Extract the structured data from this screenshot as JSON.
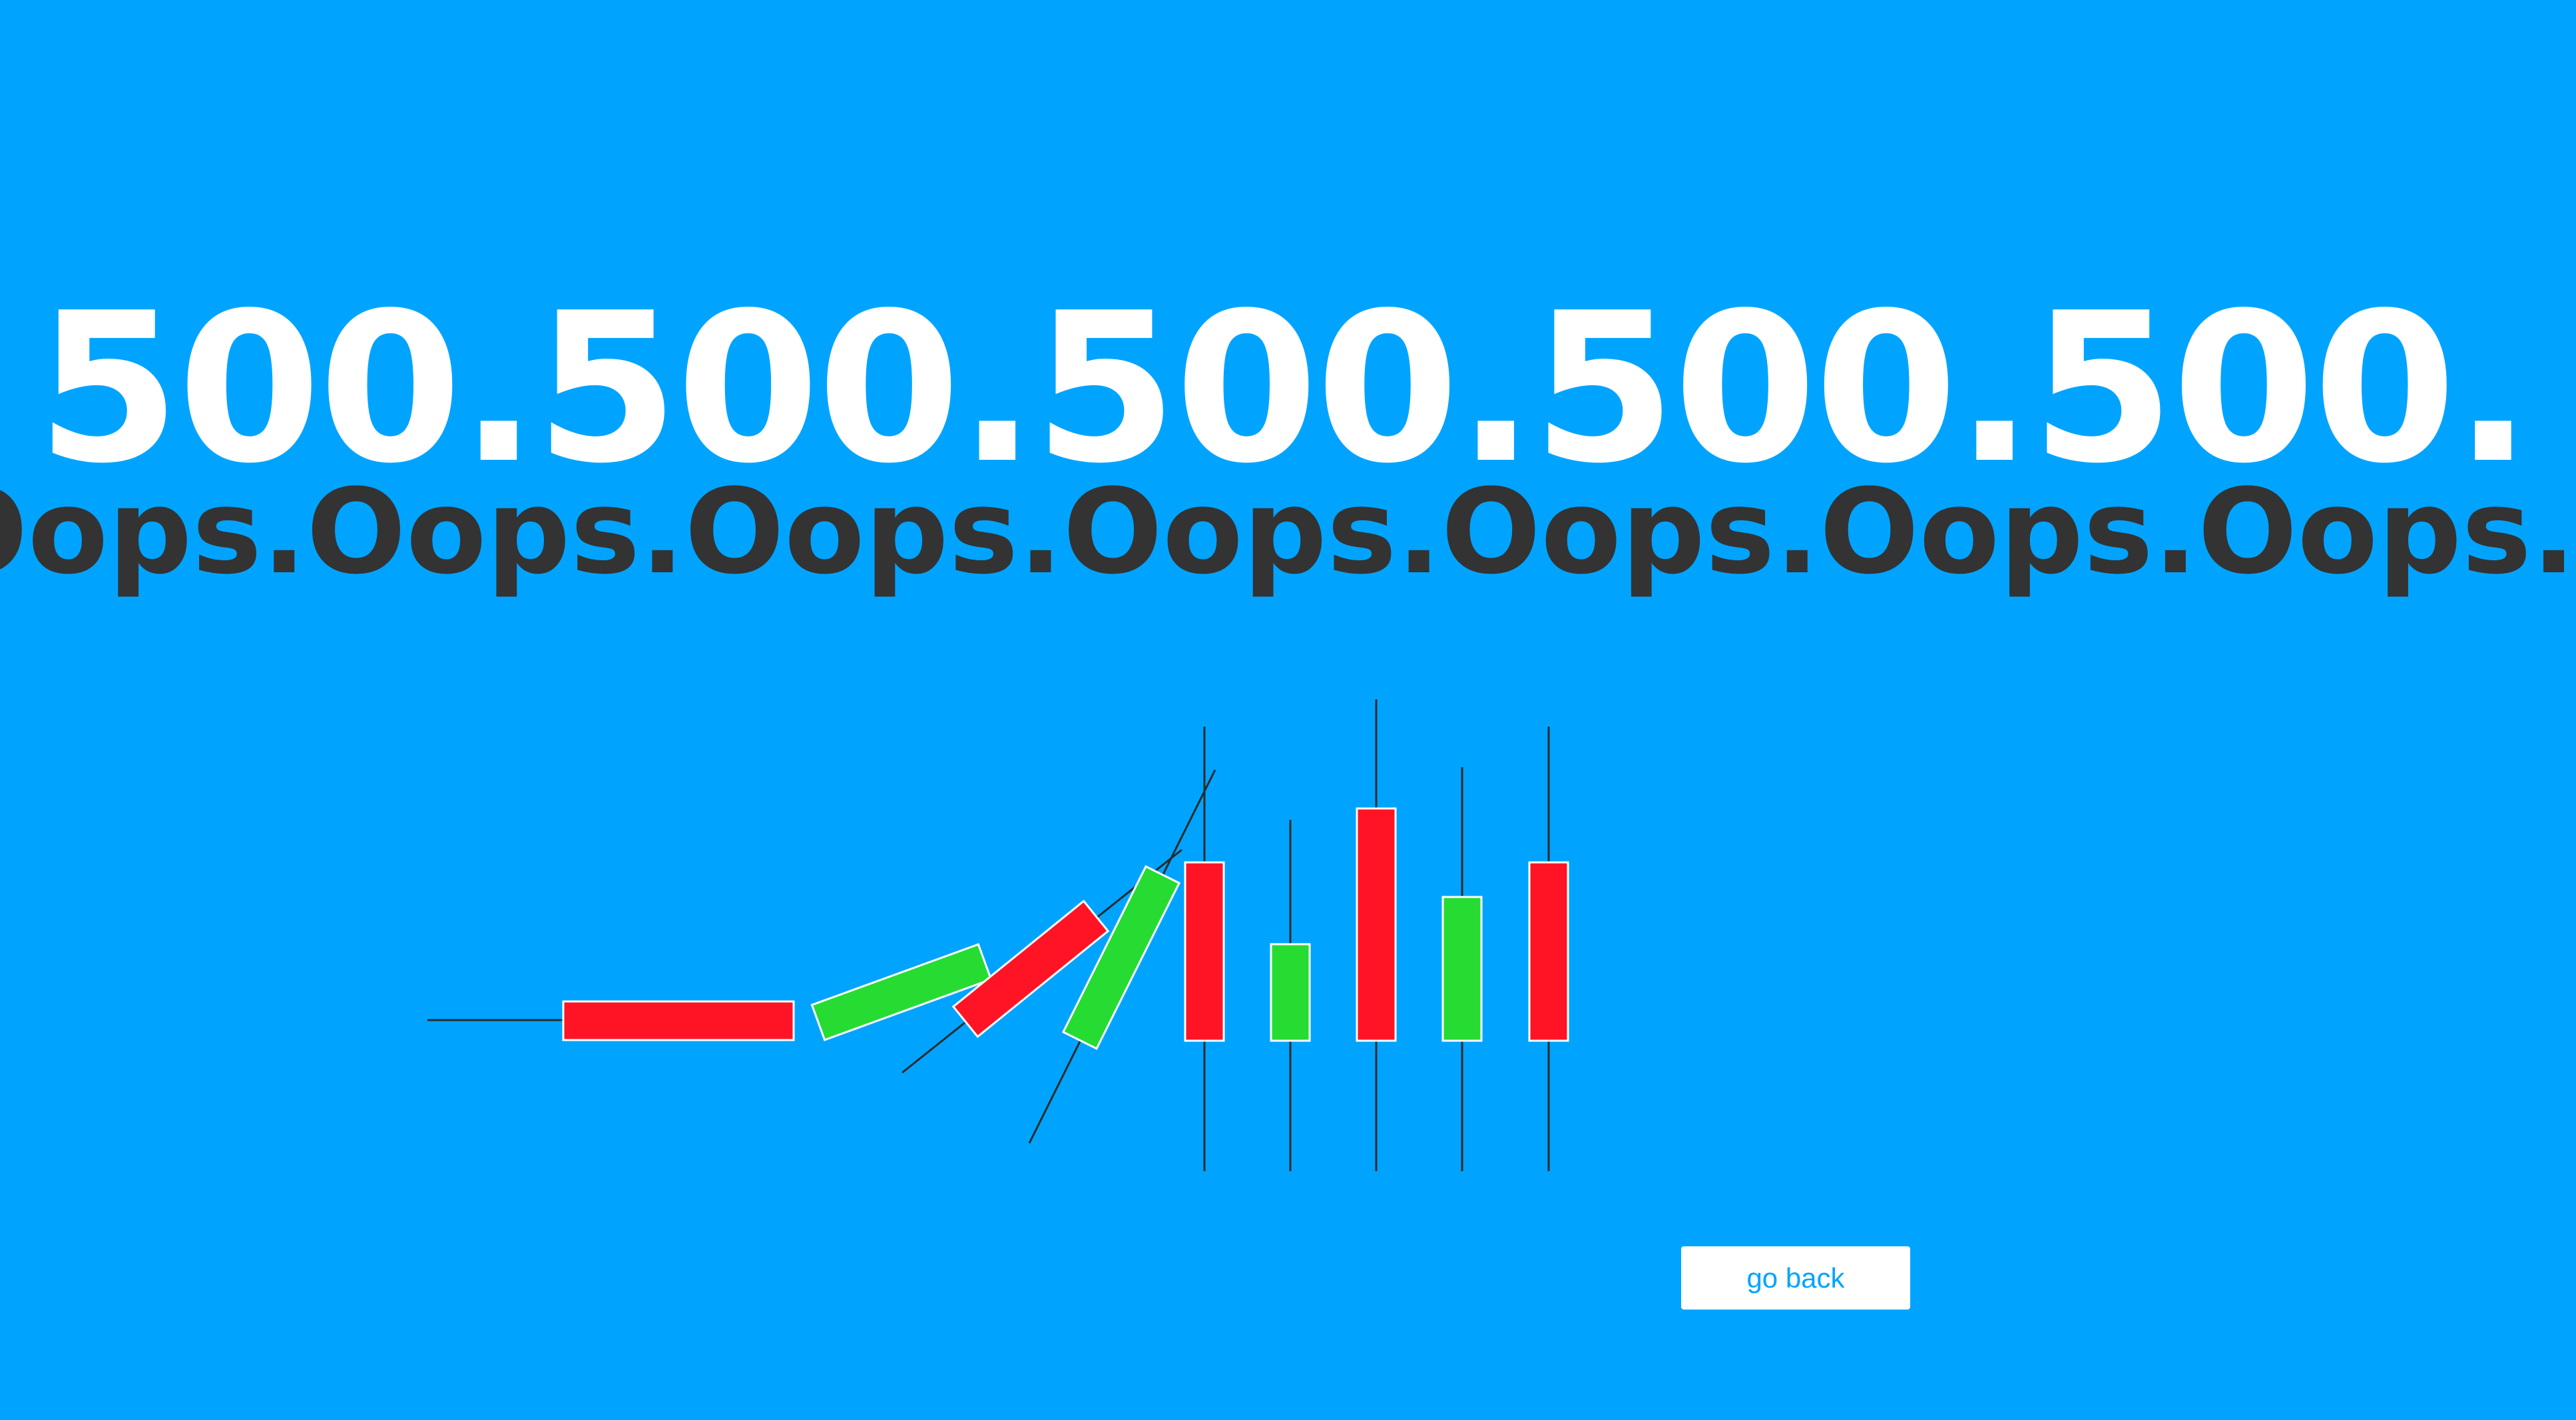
{
  "error": {
    "code_segment": "500.",
    "code_repeat": 5,
    "message_segment": "Oops.",
    "message_repeat": 7
  },
  "colors": {
    "background": "#00a4ff",
    "code_text": "#ffffff",
    "message_text": "#333333",
    "candle_up": "#26dc32",
    "candle_down": "#ff1426",
    "wick": "#2a2a2a",
    "button_bg": "#ffffff",
    "button_text": "#00a4ff"
  },
  "actions": {
    "go_back_label": "go back"
  }
}
